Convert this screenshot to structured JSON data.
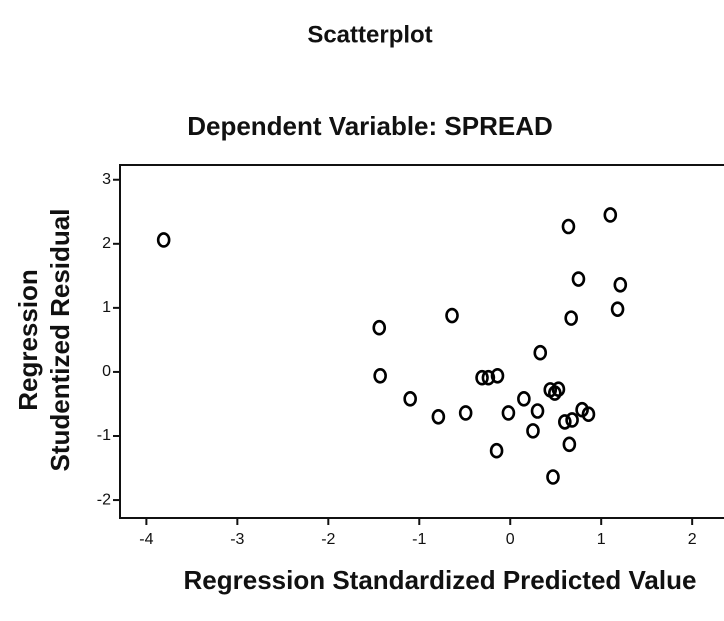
{
  "chart_data": {
    "type": "scatter",
    "title": "Scatterplot",
    "subtitle": "Dependent Variable: SPREAD",
    "xlabel": "Regression Standardized Predicted Value",
    "ylabel": [
      "Regression",
      "Studentized Residual"
    ],
    "x": [
      -3.81,
      1.1,
      0.64,
      0.75,
      1.21,
      1.18,
      0.67,
      -1.44,
      -0.64,
      0.33,
      -1.43,
      -0.31,
      -0.24,
      -0.14,
      -1.1,
      -0.79,
      -0.49,
      -0.02,
      0.15,
      0.3,
      0.44,
      0.53,
      0.49,
      0.6,
      0.68,
      0.79,
      0.86,
      0.25,
      0.65,
      -0.15,
      0.47
    ],
    "values": [
      2.06,
      2.45,
      2.27,
      1.45,
      1.36,
      0.98,
      0.84,
      0.69,
      0.88,
      0.3,
      -0.06,
      -0.09,
      -0.09,
      -0.06,
      -0.42,
      -0.7,
      -0.64,
      -0.64,
      -0.42,
      -0.61,
      -0.28,
      -0.27,
      -0.33,
      -0.78,
      -0.75,
      -0.59,
      -0.66,
      -0.92,
      -1.13,
      -1.23,
      -1.64
    ],
    "color": "#000000",
    "xlim": [
      -4.29,
      2.35
    ],
    "xticks": [
      -4,
      -3,
      -2,
      -1,
      0,
      1,
      2
    ],
    "ylim": [
      -2.28,
      3.23
    ],
    "yticks": [
      -2,
      -1,
      0,
      1,
      2,
      3
    ]
  }
}
